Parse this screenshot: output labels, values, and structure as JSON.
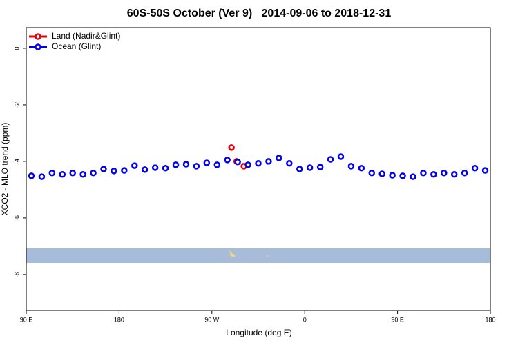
{
  "chart_data": {
    "type": "line",
    "title": "60S-50S October (Ver 9)   2014-09-06 to 2018-12-31",
    "x_label": "Longitude (deg E)",
    "y_label": "XCO2 - MLO trend (ppm)",
    "xlim": [
      90,
      540
    ],
    "ylim": [
      -9.27,
      0.73
    ],
    "xticks": [
      {
        "value": 90,
        "label": "90 E"
      },
      {
        "value": 180,
        "label": "180"
      },
      {
        "value": 270,
        "label": "90 W"
      },
      {
        "value": 360,
        "label": "0"
      },
      {
        "value": 450,
        "label": "90 E"
      },
      {
        "value": 540,
        "label": "180"
      }
    ],
    "yticks": [
      0,
      -2,
      -4,
      -6,
      -8
    ],
    "legend": "top-left",
    "series": [
      {
        "name": "Land (Nadir&Glint)",
        "color": "#e8000b",
        "x": [
          289,
          294,
          301
        ],
        "values": [
          -3.51,
          -4.0,
          -4.17
        ]
      },
      {
        "name": "Ocean (Glint)",
        "color": "#0000ee",
        "x": [
          95,
          105,
          115,
          125,
          135,
          145,
          155,
          165,
          175,
          185,
          195,
          205,
          215,
          225,
          235,
          245,
          255,
          265,
          275,
          285,
          295,
          305,
          315,
          325,
          335,
          345,
          355,
          365,
          375,
          385,
          395,
          405,
          415,
          425,
          435,
          445,
          455,
          465,
          475,
          485,
          495,
          505,
          515,
          525,
          535
        ],
        "values": [
          -4.51,
          -4.54,
          -4.41,
          -4.46,
          -4.41,
          -4.46,
          -4.41,
          -4.27,
          -4.34,
          -4.32,
          -4.15,
          -4.29,
          -4.22,
          -4.24,
          -4.12,
          -4.1,
          -4.17,
          -4.05,
          -4.12,
          -3.95,
          -4.02,
          -4.12,
          -4.07,
          -4.0,
          -3.88,
          -4.07,
          -4.27,
          -4.22,
          -4.2,
          -3.93,
          -3.83,
          -4.17,
          -4.24,
          -4.41,
          -4.44,
          -4.49,
          -4.51,
          -4.54,
          -4.41,
          -4.46,
          -4.41,
          -4.46,
          -4.41,
          -4.24,
          -4.32
        ]
      }
    ]
  }
}
